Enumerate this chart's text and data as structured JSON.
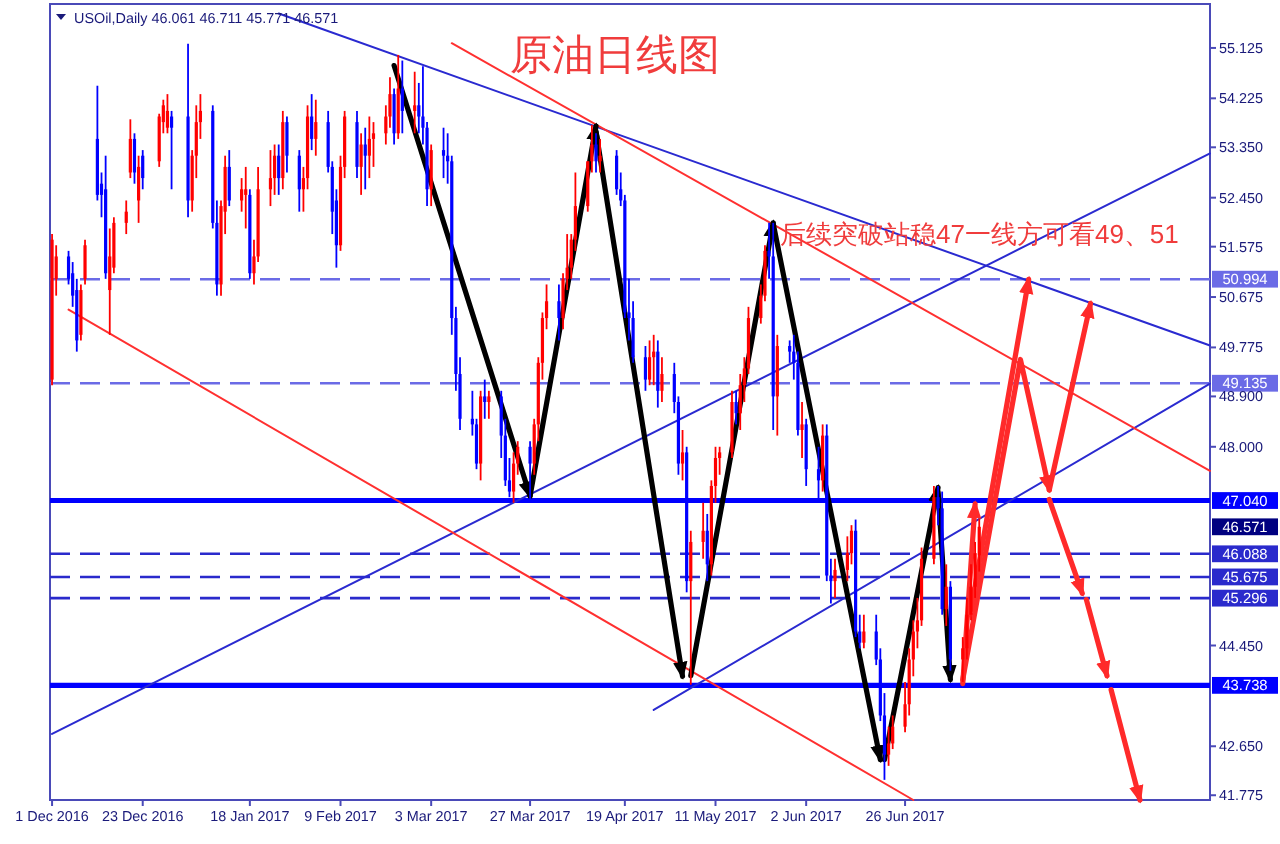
{
  "chart_data": {
    "type": "candlestick",
    "title": "原油日线图",
    "subtitle": "USOil,Daily 46.061 46.711 45.771 46.571",
    "annotations": [
      "后续突破站稳47一线方可看49、51",
      "46.571"
    ],
    "xlim": [
      "2016-11-30T12:00",
      "2017-09-08"
    ],
    "ylim": [
      41.69,
      55.91
    ],
    "xticks": [
      {
        "value": "2016-12-01",
        "label": "1 Dec 2016"
      },
      {
        "value": "2016-12-23",
        "label": "23 Dec 2016"
      },
      {
        "value": "2017-01-18",
        "label": "18 Jan 2017"
      },
      {
        "value": "2017-02-09",
        "label": "9 Feb 2017"
      },
      {
        "value": "2017-03-03",
        "label": "3 Mar 2017"
      },
      {
        "value": "2017-03-27",
        "label": "27 Mar 2017"
      },
      {
        "value": "2017-04-19",
        "label": "19 Apr 2017"
      },
      {
        "value": "2017-05-11",
        "label": "11 May 2017"
      },
      {
        "value": "2017-06-02",
        "label": "2 Jun 2017"
      },
      {
        "value": "2017-06-26",
        "label": "26 Jun 2017"
      }
    ],
    "yticks": [
      41.775,
      {
        "value": 42.65,
        "label": "42.650"
      },
      {
        "value": 44.45,
        "label": "44.450"
      },
      {
        "value": 48,
        "label": "48.000"
      },
      {
        "value": 48.9,
        "label": "48.900"
      },
      49.775,
      50.675,
      51.575,
      {
        "value": 52.45,
        "label": "52.450"
      },
      {
        "value": 53.35,
        "label": "53.350"
      },
      54.225,
      55.125
    ],
    "x": [
      "2016-12-01",
      "2016-12-02",
      "2016-12-05",
      "2016-12-06",
      "2016-12-07",
      "2016-12-08",
      "2016-12-09",
      "2016-12-12",
      "2016-12-13",
      "2016-12-14",
      "2016-12-15",
      "2016-12-16",
      "2016-12-19",
      "2016-12-20",
      "2016-12-21",
      "2016-12-22",
      "2016-12-23",
      "2016-12-27",
      "2016-12-28",
      "2016-12-29",
      "2016-12-30",
      "2017-01-03",
      "2017-01-04",
      "2017-01-05",
      "2017-01-06",
      "2017-01-09",
      "2017-01-10",
      "2017-01-11",
      "2017-01-12",
      "2017-01-13",
      "2017-01-16",
      "2017-01-17",
      "2017-01-18",
      "2017-01-19",
      "2017-01-20",
      "2017-01-23",
      "2017-01-24",
      "2017-01-25",
      "2017-01-26",
      "2017-01-27",
      "2017-01-30",
      "2017-01-31",
      "2017-02-01",
      "2017-02-02",
      "2017-02-03",
      "2017-02-06",
      "2017-02-07",
      "2017-02-08",
      "2017-02-09",
      "2017-02-10",
      "2017-02-13",
      "2017-02-14",
      "2017-02-15",
      "2017-02-16",
      "2017-02-17",
      "2017-02-20",
      "2017-02-21",
      "2017-02-22",
      "2017-02-23",
      "2017-02-24",
      "2017-02-27",
      "2017-02-28",
      "2017-03-01",
      "2017-03-02",
      "2017-03-03",
      "2017-03-06",
      "2017-03-07",
      "2017-03-08",
      "2017-03-09",
      "2017-03-10",
      "2017-03-13",
      "2017-03-14",
      "2017-03-15",
      "2017-03-16",
      "2017-03-17",
      "2017-03-20",
      "2017-03-21",
      "2017-03-22",
      "2017-03-23",
      "2017-03-24",
      "2017-03-27",
      "2017-03-28",
      "2017-03-29",
      "2017-03-30",
      "2017-03-31",
      "2017-04-03",
      "2017-04-04",
      "2017-04-05",
      "2017-04-06",
      "2017-04-07",
      "2017-04-10",
      "2017-04-11",
      "2017-04-12",
      "2017-04-13",
      "2017-04-17",
      "2017-04-18",
      "2017-04-19",
      "2017-04-20",
      "2017-04-21",
      "2017-04-24",
      "2017-04-25",
      "2017-04-26",
      "2017-04-27",
      "2017-04-28",
      "2017-05-01",
      "2017-05-02",
      "2017-05-03",
      "2017-05-04",
      "2017-05-05",
      "2017-05-08",
      "2017-05-09",
      "2017-05-10",
      "2017-05-11",
      "2017-05-12",
      "2017-05-15",
      "2017-05-16",
      "2017-05-17",
      "2017-05-18",
      "2017-05-19",
      "2017-05-22",
      "2017-05-23",
      "2017-05-24",
      "2017-05-25",
      "2017-05-26",
      "2017-05-29",
      "2017-05-30",
      "2017-05-31",
      "2017-06-01",
      "2017-06-02",
      "2017-06-05",
      "2017-06-06",
      "2017-06-07",
      "2017-06-08",
      "2017-06-09",
      "2017-06-12",
      "2017-06-13",
      "2017-06-14",
      "2017-06-15",
      "2017-06-16",
      "2017-06-19",
      "2017-06-20",
      "2017-06-21",
      "2017-06-22",
      "2017-06-23",
      "2017-06-26",
      "2017-06-27",
      "2017-06-28",
      "2017-06-29",
      "2017-06-30",
      "2017-07-03",
      "2017-07-04",
      "2017-07-05",
      "2017-07-06",
      "2017-07-07",
      "2017-07-10",
      "2017-07-11",
      "2017-07-12",
      "2017-07-13",
      "2017-07-14"
    ],
    "ohlc": [
      [
        49.2,
        51.8,
        49.1,
        51.7
      ],
      [
        51.0,
        51.6,
        50.7,
        51.4
      ],
      [
        51.4,
        51.5,
        50.9,
        51.0
      ],
      [
        51.1,
        51.3,
        50.5,
        50.7
      ],
      [
        50.8,
        51.0,
        49.7,
        49.9
      ],
      [
        50.0,
        50.9,
        49.9,
        50.8
      ],
      [
        51.0,
        51.7,
        50.9,
        51.6
      ],
      [
        53.5,
        54.45,
        52.4,
        52.5
      ],
      [
        52.7,
        52.9,
        52.1,
        52.5
      ],
      [
        52.6,
        53.2,
        51.0,
        51.1
      ],
      [
        50.8,
        51.9,
        50.0,
        51.4
      ],
      [
        51.2,
        52.1,
        51.1,
        52.0
      ],
      [
        52.0,
        52.4,
        51.8,
        52.2
      ],
      [
        52.9,
        53.85,
        52.8,
        53.5
      ],
      [
        53.5,
        53.6,
        52.7,
        52.9
      ],
      [
        52.4,
        53.2,
        52.0,
        53.0
      ],
      [
        53.2,
        53.3,
        52.6,
        52.8
      ],
      [
        53.1,
        53.95,
        53.0,
        53.9
      ],
      [
        53.8,
        54.2,
        53.6,
        54.1
      ],
      [
        53.7,
        54.3,
        53.6,
        54.0
      ],
      [
        53.9,
        54.0,
        52.6,
        53.7
      ],
      [
        53.9,
        55.2,
        52.1,
        52.4
      ],
      [
        52.4,
        53.3,
        52.2,
        53.2
      ],
      [
        53.2,
        54.1,
        52.8,
        53.8
      ],
      [
        53.8,
        54.3,
        53.5,
        54.0
      ],
      [
        54.0,
        54.1,
        51.9,
        52.0
      ],
      [
        52.0,
        52.4,
        50.7,
        50.9
      ],
      [
        50.9,
        52.4,
        50.7,
        52.3
      ],
      [
        52.2,
        53.2,
        51.8,
        53.0
      ],
      [
        53.0,
        53.3,
        52.3,
        52.4
      ],
      [
        52.4,
        52.8,
        52.2,
        52.6
      ],
      [
        52.5,
        53.0,
        51.9,
        52.6
      ],
      [
        52.5,
        52.6,
        51.0,
        51.1
      ],
      [
        51.1,
        51.7,
        50.9,
        51.4
      ],
      [
        51.4,
        53.0,
        51.3,
        52.6
      ],
      [
        52.6,
        53.3,
        52.3,
        52.8
      ],
      [
        52.8,
        53.4,
        52.5,
        53.2
      ],
      [
        53.2,
        53.4,
        52.5,
        52.8
      ],
      [
        52.8,
        54.0,
        52.6,
        53.8
      ],
      [
        53.8,
        53.9,
        52.9,
        53.2
      ],
      [
        53.2,
        53.3,
        52.2,
        52.6
      ],
      [
        52.6,
        53.0,
        52.2,
        52.8
      ],
      [
        52.8,
        54.1,
        52.6,
        53.9
      ],
      [
        53.9,
        54.3,
        53.3,
        53.5
      ],
      [
        53.5,
        54.2,
        53.2,
        53.8
      ],
      [
        53.8,
        54.0,
        52.9,
        53.0
      ],
      [
        53.0,
        53.1,
        51.8,
        52.2
      ],
      [
        52.4,
        52.6,
        51.2,
        51.6
      ],
      [
        51.6,
        53.2,
        51.5,
        53.0
      ],
      [
        53.0,
        54.0,
        52.8,
        53.9
      ],
      [
        53.8,
        54.0,
        52.8,
        53.0
      ],
      [
        53.0,
        53.6,
        52.5,
        53.4
      ],
      [
        53.4,
        53.7,
        52.6,
        53.2
      ],
      [
        53.2,
        53.9,
        52.8,
        53.5
      ],
      [
        53.5,
        53.8,
        53.0,
        53.6
      ],
      [
        53.6,
        54.1,
        53.4,
        53.9
      ],
      [
        53.9,
        54.6,
        53.7,
        54.3
      ],
      [
        54.3,
        54.4,
        53.4,
        53.6
      ],
      [
        53.6,
        55.0,
        53.5,
        54.4
      ],
      [
        54.4,
        54.9,
        53.6,
        54.0
      ],
      [
        54.0,
        54.7,
        53.6,
        54.1
      ],
      [
        54.1,
        54.5,
        53.6,
        53.9
      ],
      [
        53.9,
        54.8,
        53.4,
        53.7
      ],
      [
        53.7,
        53.8,
        52.3,
        52.6
      ],
      [
        52.6,
        53.4,
        52.3,
        53.3
      ],
      [
        53.3,
        53.7,
        52.8,
        53.2
      ],
      [
        53.2,
        53.6,
        52.7,
        53.1
      ],
      [
        53.1,
        53.2,
        50.0,
        50.3
      ],
      [
        50.3,
        50.5,
        49.0,
        49.3
      ],
      [
        49.3,
        49.6,
        48.3,
        48.5
      ],
      [
        48.5,
        49.0,
        48.2,
        48.4
      ],
      [
        48.4,
        48.5,
        47.6,
        47.7
      ],
      [
        47.7,
        49.0,
        47.4,
        48.9
      ],
      [
        48.9,
        49.2,
        48.5,
        48.8
      ],
      [
        48.8,
        49.0,
        48.5,
        48.9
      ],
      [
        48.9,
        49.0,
        47.8,
        48.2
      ],
      [
        48.2,
        48.5,
        47.3,
        47.4
      ],
      [
        47.4,
        47.8,
        47.1,
        47.2
      ],
      [
        47.2,
        47.9,
        47.0,
        47.7
      ],
      [
        47.7,
        48.1,
        47.5,
        48.0
      ],
      [
        48.0,
        48.1,
        47.05,
        47.7
      ],
      [
        47.7,
        48.5,
        47.5,
        48.4
      ],
      [
        48.4,
        49.6,
        48.1,
        49.5
      ],
      [
        49.5,
        50.4,
        49.2,
        50.3
      ],
      [
        50.3,
        50.9,
        50.1,
        50.6
      ],
      [
        50.6,
        50.9,
        49.9,
        50.3
      ],
      [
        50.3,
        51.1,
        50.1,
        51.0
      ],
      [
        51.0,
        51.8,
        50.8,
        51.2
      ],
      [
        51.2,
        51.8,
        51.0,
        51.7
      ],
      [
        51.7,
        52.9,
        51.5,
        52.3
      ],
      [
        52.3,
        53.1,
        52.2,
        53.1
      ],
      [
        53.1,
        53.75,
        52.9,
        53.4
      ],
      [
        53.4,
        53.6,
        52.9,
        53.1
      ],
      [
        53.1,
        53.5,
        52.9,
        53.2
      ],
      [
        53.2,
        53.3,
        52.5,
        52.6
      ],
      [
        52.6,
        52.9,
        52.3,
        52.4
      ],
      [
        52.4,
        52.5,
        50.3,
        50.4
      ],
      [
        50.4,
        51.0,
        49.9,
        50.3
      ],
      [
        50.3,
        50.6,
        49.5,
        49.6
      ],
      [
        49.6,
        49.8,
        49.0,
        49.2
      ],
      [
        49.2,
        49.9,
        49.1,
        49.6
      ],
      [
        49.6,
        50.0,
        49.1,
        49.7
      ],
      [
        49.7,
        49.9,
        48.7,
        49.0
      ],
      [
        49.0,
        49.6,
        48.8,
        49.3
      ],
      [
        49.3,
        49.5,
        48.6,
        48.8
      ],
      [
        48.8,
        48.9,
        47.5,
        47.7
      ],
      [
        47.7,
        48.3,
        47.4,
        47.9
      ],
      [
        47.9,
        48.0,
        45.4,
        45.6
      ],
      [
        45.6,
        46.5,
        43.75,
        46.3
      ],
      [
        46.3,
        47.0,
        46.0,
        46.5
      ],
      [
        46.5,
        46.8,
        45.6,
        45.9
      ],
      [
        45.9,
        47.4,
        45.7,
        47.3
      ],
      [
        47.3,
        48.0,
        47.0,
        47.8
      ],
      [
        47.8,
        48.0,
        47.5,
        47.9
      ],
      [
        47.9,
        49.0,
        47.8,
        48.8
      ],
      [
        48.8,
        49.0,
        48.4,
        48.6
      ],
      [
        48.6,
        49.3,
        48.3,
        49.1
      ],
      [
        49.1,
        49.6,
        48.8,
        49.4
      ],
      [
        49.4,
        50.5,
        49.3,
        50.3
      ],
      [
        50.3,
        50.9,
        50.2,
        50.7
      ],
      [
        50.7,
        51.6,
        50.6,
        51.5
      ],
      [
        51.5,
        52.0,
        51.0,
        51.4
      ],
      [
        51.4,
        52.0,
        48.3,
        48.9
      ],
      [
        48.9,
        50.0,
        48.2,
        49.8
      ],
      [
        49.8,
        49.9,
        49.5,
        49.7
      ],
      [
        49.7,
        50.0,
        49.2,
        49.5
      ],
      [
        49.5,
        49.7,
        48.2,
        48.3
      ],
      [
        48.3,
        48.8,
        47.8,
        48.4
      ],
      [
        48.4,
        48.5,
        47.3,
        47.6
      ],
      [
        47.6,
        48.0,
        47.0,
        47.4
      ],
      [
        47.4,
        48.4,
        47.2,
        48.2
      ],
      [
        48.2,
        48.4,
        45.6,
        45.7
      ],
      [
        45.7,
        46.0,
        45.2,
        45.6
      ],
      [
        45.6,
        46.0,
        45.3,
        45.8
      ],
      [
        45.8,
        46.4,
        45.6,
        46.1
      ],
      [
        46.1,
        46.6,
        45.9,
        46.5
      ],
      [
        46.5,
        46.7,
        44.6,
        44.7
      ],
      [
        44.7,
        45.0,
        44.4,
        44.5
      ],
      [
        44.5,
        45.0,
        44.4,
        44.7
      ],
      [
        44.7,
        45.0,
        44.1,
        44.2
      ],
      [
        44.2,
        44.4,
        43.1,
        43.2
      ],
      [
        43.2,
        43.6,
        42.05,
        42.5
      ],
      [
        42.5,
        43.0,
        42.3,
        42.7
      ],
      [
        42.7,
        43.2,
        42.6,
        43.0
      ],
      [
        43.0,
        43.8,
        42.9,
        43.4
      ],
      [
        43.4,
        44.4,
        43.2,
        44.2
      ],
      [
        44.2,
        44.9,
        43.9,
        44.7
      ],
      [
        44.7,
        45.3,
        44.4,
        44.9
      ],
      [
        44.9,
        46.2,
        44.8,
        46.0
      ],
      [
        46.0,
        47.3,
        45.9,
        47.1
      ],
      [
        47.1,
        47.3,
        46.6,
        46.9
      ],
      [
        46.9,
        47.2,
        45.0,
        45.1
      ],
      [
        45.1,
        45.9,
        44.8,
        45.5
      ],
      [
        45.5,
        45.6,
        44.0,
        44.2
      ],
      [
        44.2,
        44.6,
        43.8,
        44.4
      ],
      [
        44.4,
        45.3,
        44.2,
        45.0
      ],
      [
        45.0,
        45.9,
        44.9,
        45.5
      ],
      [
        45.5,
        46.3,
        45.3,
        46.1
      ],
      [
        46.061,
        46.711,
        45.771,
        46.571
      ]
    ],
    "colors": [
      "#ff0000",
      "#ff0000",
      "#0000ff",
      "#0000ff",
      "#0000ff",
      "#ff0000",
      "#ff0000",
      "#0000ff",
      "#0000ff",
      "#0000ff",
      "#ff0000",
      "#ff0000",
      "#ff0000",
      "#ff0000",
      "#0000ff",
      "#ff0000",
      "#0000ff",
      "#ff0000",
      "#ff0000",
      "#ff0000",
      "#0000ff",
      "#0000ff",
      "#ff0000",
      "#ff0000",
      "#ff0000",
      "#0000ff",
      "#0000ff",
      "#ff0000",
      "#ff0000",
      "#0000ff",
      "#ff0000",
      "#ff0000",
      "#0000ff",
      "#ff0000",
      "#ff0000",
      "#ff0000",
      "#ff0000",
      "#0000ff",
      "#ff0000",
      "#0000ff",
      "#0000ff",
      "#ff0000",
      "#ff0000",
      "#0000ff",
      "#ff0000",
      "#0000ff",
      "#0000ff",
      "#0000ff",
      "#ff0000",
      "#ff0000",
      "#0000ff",
      "#ff0000",
      "#0000ff",
      "#ff0000",
      "#ff0000",
      "#ff0000",
      "#ff0000",
      "#0000ff",
      "#ff0000",
      "#0000ff",
      "#ff0000",
      "#0000ff",
      "#0000ff",
      "#0000ff",
      "#ff0000",
      "#0000ff",
      "#0000ff",
      "#0000ff",
      "#0000ff",
      "#0000ff",
      "#0000ff",
      "#0000ff",
      "#ff0000",
      "#0000ff",
      "#ff0000",
      "#0000ff",
      "#0000ff",
      "#0000ff",
      "#ff0000",
      "#ff0000",
      "#0000ff",
      "#ff0000",
      "#ff0000",
      "#ff0000",
      "#ff0000",
      "#0000ff",
      "#ff0000",
      "#ff0000",
      "#ff0000",
      "#ff0000",
      "#ff0000",
      "#ff0000",
      "#0000ff",
      "#ff0000",
      "#0000ff",
      "#0000ff",
      "#0000ff",
      "#0000ff",
      "#0000ff",
      "#0000ff",
      "#ff0000",
      "#ff0000",
      "#0000ff",
      "#ff0000",
      "#0000ff",
      "#0000ff",
      "#ff0000",
      "#0000ff",
      "#ff0000",
      "#ff0000",
      "#0000ff",
      "#ff0000",
      "#ff0000",
      "#ff0000",
      "#ff0000",
      "#0000ff",
      "#ff0000",
      "#ff0000",
      "#ff0000",
      "#ff0000",
      "#ff0000",
      "#0000ff",
      "#0000ff",
      "#ff0000",
      "#0000ff",
      "#0000ff",
      "#0000ff",
      "#ff0000",
      "#0000ff",
      "#0000ff",
      "#ff0000",
      "#0000ff",
      "#0000ff",
      "#ff0000",
      "#ff0000",
      "#ff0000",
      "#0000ff",
      "#0000ff",
      "#ff0000",
      "#0000ff",
      "#0000ff",
      "#0000ff",
      "#ff0000",
      "#ff0000",
      "#ff0000",
      "#ff0000",
      "#ff0000",
      "#ff0000",
      "#ff0000",
      "#ff0000",
      "#0000ff",
      "#0000ff",
      "#ff0000",
      "#0000ff",
      "#ff0000",
      "#ff0000",
      "#ff0000",
      "#ff0000",
      "#ff0000"
    ],
    "series": [
      {
        "type": "line",
        "color": "#2a2ad0",
        "x": [
          "2017-01-25",
          "2017-09-08"
        ],
        "values": [
          55.74,
          49.81
        ]
      },
      {
        "type": "line",
        "color": "#2a2ad0",
        "x": [
          "2016-12-01",
          "2017-09-08"
        ],
        "values": [
          42.87,
          53.24
        ]
      },
      {
        "type": "line",
        "color": "#2a2ad0",
        "x": [
          "2017-04-26",
          "2017-09-08"
        ],
        "values": [
          43.3,
          49.13
        ]
      },
      {
        "type": "line",
        "color": "#ff3030",
        "x": [
          "2017-03-08",
          "2017-09-08"
        ],
        "values": [
          55.21,
          47.57
        ]
      },
      {
        "type": "line",
        "color": "#ff3030",
        "x": [
          "2016-12-05",
          "2017-06-28"
        ],
        "values": [
          50.45,
          41.69
        ]
      },
      {
        "type": "line",
        "color": "#000000",
        "x": [
          "2017-02-22",
          "2017-03-27"
        ],
        "values": [
          54.81,
          47.12
        ]
      },
      {
        "type": "line",
        "color": "#000000",
        "x": [
          "2017-03-27",
          "2017-04-12"
        ],
        "values": [
          47.12,
          53.73
        ]
      },
      {
        "type": "line",
        "color": "#000000",
        "x": [
          "2017-04-12",
          "2017-05-03"
        ],
        "values": [
          53.63,
          43.9
        ]
      },
      {
        "type": "line",
        "color": "#000000",
        "x": [
          "2017-05-05",
          "2017-05-25"
        ],
        "values": [
          43.91,
          52.0
        ]
      },
      {
        "type": "line",
        "color": "#000000",
        "x": [
          "2017-05-25",
          "2017-06-20"
        ],
        "values": [
          51.99,
          42.41
        ]
      },
      {
        "type": "line",
        "color": "#000000",
        "x": [
          "2017-06-21",
          "2017-07-04"
        ],
        "values": [
          42.41,
          47.27
        ]
      },
      {
        "type": "line",
        "color": "#000000",
        "x": [
          "2017-07-04",
          "2017-07-07"
        ],
        "values": [
          47.2,
          43.84
        ]
      },
      {
        "type": "line",
        "color": "#ff2a2a",
        "x": [
          "2017-07-10",
          "2017-07-13"
        ],
        "values": [
          43.77,
          46.98
        ]
      },
      {
        "type": "line",
        "color": "#ff2a2a",
        "x": [
          "2017-07-10",
          "2017-07-24",
          "2017-07-31"
        ],
        "values": [
          43.84,
          49.56,
          47.23
        ]
      },
      {
        "type": "line",
        "color": "#ff2a2a",
        "x": [
          "2017-07-12",
          "2017-07-26"
        ],
        "values": [
          45.09,
          50.99
        ]
      },
      {
        "type": "line",
        "color": "#ff2a2a",
        "x": [
          "2017-07-31",
          "2017-08-10"
        ],
        "values": [
          47.23,
          50.56
        ]
      },
      {
        "type": "line",
        "color": "#ff2a2a",
        "x": [
          "2017-07-31",
          "2017-08-08"
        ],
        "values": [
          47.06,
          45.38
        ]
      },
      {
        "type": "line",
        "color": "#ff2a2a",
        "x": [
          "2017-08-09",
          "2017-08-14"
        ],
        "values": [
          45.27,
          43.91
        ]
      },
      {
        "type": "line",
        "color": "#ff2a2a",
        "x": [
          "2017-08-15",
          "2017-08-22"
        ],
        "values": [
          43.66,
          41.69
        ]
      }
    ],
    "ref_lines": [
      {
        "axis": "y",
        "value": 50.994,
        "label": "50.994",
        "color": "#6b6be6",
        "line_style": "dashed"
      },
      {
        "axis": "y",
        "value": 49.135,
        "label": "49.135",
        "color": "#6b6be6",
        "line_style": "dashed"
      },
      {
        "axis": "y",
        "value": 47.04,
        "label": "47.040",
        "color": "#0000ff",
        "line_style": "solid"
      },
      {
        "axis": "y",
        "value": 46.088,
        "label": "46.088",
        "color": "#2a2acc",
        "line_style": "dashed"
      },
      {
        "axis": "y",
        "value": 45.675,
        "label": "45.675",
        "color": "#2a2acc",
        "line_style": "dashed"
      },
      {
        "axis": "y",
        "value": 45.296,
        "label": "45.296",
        "color": "#2a2acc",
        "line_style": "dashed"
      },
      {
        "axis": "y",
        "value": 43.738,
        "label": "43.738",
        "color": "#0000ff",
        "line_style": "solid"
      }
    ]
  }
}
